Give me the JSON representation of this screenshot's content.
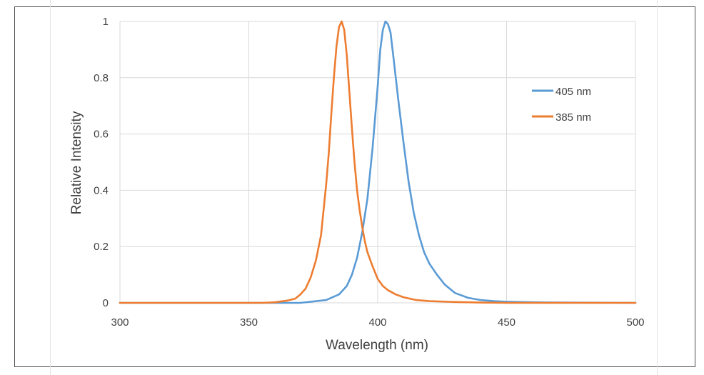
{
  "chart_data": {
    "type": "line",
    "title": "",
    "xlabel": "Wavelength (nm)",
    "ylabel": "Relative Intensity",
    "xlim": [
      300,
      500
    ],
    "ylim": [
      0,
      1
    ],
    "x_ticks": [
      300,
      350,
      400,
      450,
      500
    ],
    "y_ticks": [
      0,
      0.2,
      0.4,
      0.6,
      0.8,
      1
    ],
    "y_tick_labels": [
      "0",
      "0.2",
      "0.4",
      "0.6",
      "0.8",
      "1"
    ],
    "grid": true,
    "legend_position": "right",
    "series": [
      {
        "name": "405 nm",
        "color": "#5b9bd5",
        "x": [
          300,
          360,
          370,
          380,
          385,
          388,
          390,
          392,
          394,
          396,
          398,
          400,
          401,
          402,
          403,
          404,
          405,
          406,
          408,
          410,
          412,
          414,
          416,
          418,
          420,
          423,
          426,
          430,
          435,
          440,
          445,
          450,
          460,
          470,
          500
        ],
        "y": [
          0,
          0,
          0,
          0.01,
          0.03,
          0.06,
          0.1,
          0.16,
          0.25,
          0.37,
          0.55,
          0.77,
          0.9,
          0.97,
          1.0,
          0.99,
          0.96,
          0.88,
          0.72,
          0.57,
          0.43,
          0.32,
          0.24,
          0.18,
          0.14,
          0.1,
          0.065,
          0.035,
          0.018,
          0.01,
          0.006,
          0.004,
          0.002,
          0.001,
          0
        ]
      },
      {
        "name": "385 nm",
        "color": "#ed7d31",
        "x": [
          300,
          355,
          360,
          365,
          368,
          370,
          372,
          374,
          376,
          378,
          380,
          381,
          382,
          383,
          384,
          385,
          386,
          387,
          388,
          389,
          390,
          391,
          392,
          393,
          394,
          395,
          396,
          398,
          400,
          402,
          404,
          407,
          410,
          415,
          420,
          430,
          440,
          450,
          500
        ],
        "y": [
          0,
          0,
          0.002,
          0.008,
          0.015,
          0.03,
          0.05,
          0.09,
          0.15,
          0.24,
          0.42,
          0.53,
          0.67,
          0.8,
          0.91,
          0.98,
          1.0,
          0.97,
          0.88,
          0.75,
          0.62,
          0.5,
          0.4,
          0.33,
          0.27,
          0.22,
          0.18,
          0.13,
          0.085,
          0.06,
          0.045,
          0.03,
          0.02,
          0.01,
          0.006,
          0.003,
          0.001,
          0,
          0
        ]
      }
    ]
  }
}
